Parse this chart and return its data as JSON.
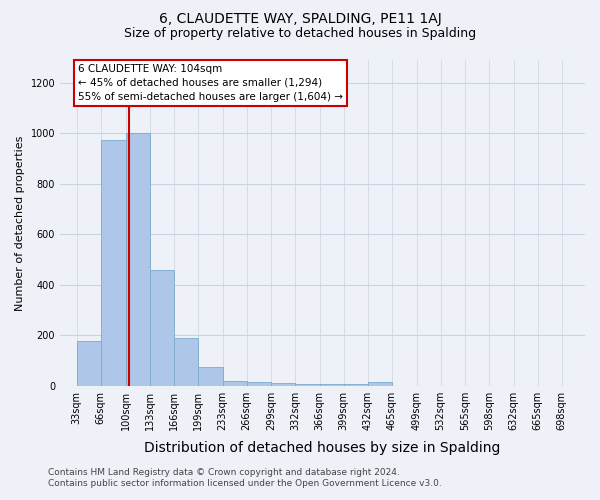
{
  "title": "6, CLAUDETTE WAY, SPALDING, PE11 1AJ",
  "subtitle": "Size of property relative to detached houses in Spalding",
  "xlabel": "Distribution of detached houses by size in Spalding",
  "ylabel": "Number of detached properties",
  "annotation_line1": "6 CLAUDETTE WAY: 104sqm",
  "annotation_line2": "← 45% of detached houses are smaller (1,294)",
  "annotation_line3": "55% of semi-detached houses are larger (1,604) →",
  "property_size": 104,
  "bar_left_edges": [
    33,
    66,
    100,
    133,
    166,
    199,
    233,
    266,
    299,
    332,
    366,
    399,
    432,
    465,
    499,
    532,
    565,
    598,
    632,
    665
  ],
  "bar_widths": [
    33,
    34,
    33,
    33,
    33,
    34,
    33,
    33,
    33,
    34,
    33,
    33,
    33,
    34,
    33,
    33,
    33,
    34,
    33,
    33
  ],
  "bar_heights": [
    175,
    975,
    1000,
    460,
    190,
    75,
    20,
    15,
    10,
    5,
    5,
    5,
    15,
    0,
    0,
    0,
    0,
    0,
    0,
    0
  ],
  "bar_color": "#aec6e8",
  "bar_edgecolor": "#7aabcc",
  "red_line_color": "#cc0000",
  "ylim": [
    0,
    1290
  ],
  "yticks": [
    0,
    200,
    400,
    600,
    800,
    1000,
    1200
  ],
  "x_tick_labels": [
    "33sqm",
    "66sqm",
    "100sqm",
    "133sqm",
    "166sqm",
    "199sqm",
    "233sqm",
    "266sqm",
    "299sqm",
    "332sqm",
    "366sqm",
    "399sqm",
    "432sqm",
    "465sqm",
    "499sqm",
    "532sqm",
    "565sqm",
    "598sqm",
    "632sqm",
    "665sqm",
    "698sqm"
  ],
  "x_tick_positions": [
    33,
    66,
    100,
    133,
    166,
    199,
    233,
    266,
    299,
    332,
    366,
    399,
    432,
    465,
    499,
    532,
    565,
    598,
    632,
    665,
    698
  ],
  "footer_line1": "Contains HM Land Registry data © Crown copyright and database right 2024.",
  "footer_line2": "Contains public sector information licensed under the Open Government Licence v3.0.",
  "background_color": "#eef2f8",
  "plot_bg_color": "#eef2f8",
  "annotation_box_color": "#ffffff",
  "annotation_box_edgecolor": "#cc0000",
  "grid_color": "#c8d4e4",
  "title_fontsize": 10,
  "subtitle_fontsize": 9,
  "xlabel_fontsize": 10,
  "ylabel_fontsize": 8,
  "tick_fontsize": 7,
  "annotation_fontsize": 7.5,
  "footer_fontsize": 6.5,
  "xlim_left": 10,
  "xlim_right": 730
}
